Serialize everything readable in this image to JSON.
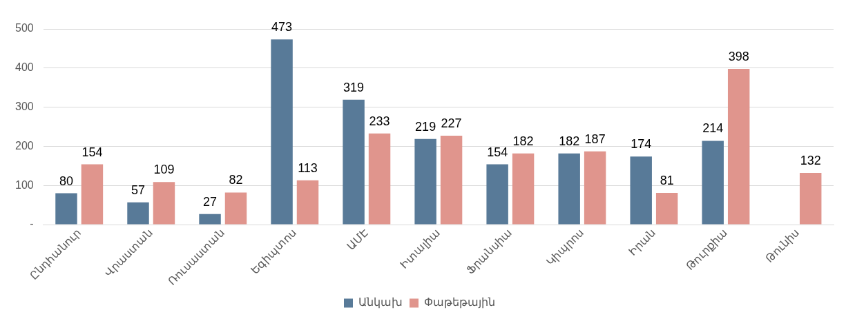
{
  "chart_data": {
    "type": "bar",
    "categories": [
      "Ընդհանուր",
      "Վրաստան",
      "Ռուսաստան",
      "Եգիպտոս",
      "ԱՄԷ",
      "Իտալիա",
      "Ֆրանսիա",
      "Կիպրոս",
      "Իրան",
      "Թուրքիա",
      "Թունիս"
    ],
    "series": [
      {
        "name": "Անկախ",
        "color": "#587a98",
        "values": [
          80,
          57,
          27,
          473,
          319,
          219,
          154,
          182,
          174,
          214,
          null
        ]
      },
      {
        "name": "Փաթեթային",
        "color": "#e0958d",
        "values": [
          154,
          109,
          82,
          113,
          233,
          227,
          182,
          187,
          81,
          398,
          132
        ]
      }
    ],
    "ylim": [
      0,
      500
    ],
    "yticks": [
      {
        "value": 0,
        "label": "-"
      },
      100,
      200,
      300,
      400,
      500
    ],
    "grid": "y",
    "legend": "bottom",
    "data_labels": true
  }
}
